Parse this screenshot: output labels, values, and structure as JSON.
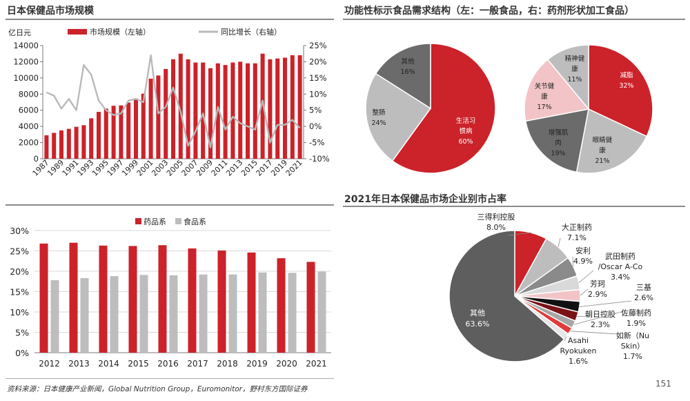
{
  "panels": {
    "top_left_title": "日本保健品市场规模",
    "top_right_title": "功能性标示食品需求结构（左：一般食品，右：药剂形状加工食品）",
    "bottom_right_title": "2021年日本保健品市场企业别市占率"
  },
  "footer": {
    "source": "资料来源：日本健康产业新闻，Global Nutrition Group，Euromonitor，野村东方国际证券",
    "page": "151"
  },
  "colors": {
    "red": "#cc2229",
    "gray": "#b9b9b9",
    "darkgray": "#6b6b6b",
    "pink": "#f2c4c7",
    "black": "#111111"
  },
  "chart_data": [
    {
      "id": "market_size",
      "type": "bar+line",
      "unit_label": "亿日元",
      "x": [
        "1987",
        "1988",
        "1989",
        "1990",
        "1991",
        "1992",
        "1993",
        "1994",
        "1995",
        "1996",
        "1997",
        "1998",
        "1999",
        "2000",
        "2001",
        "2002",
        "2003",
        "2004",
        "2005",
        "2006",
        "2007",
        "2008",
        "2009",
        "2010",
        "2011",
        "2012",
        "2013",
        "2014",
        "2015",
        "2016",
        "2017",
        "2018",
        "2019",
        "2020",
        "2021"
      ],
      "x_tick_labels": [
        "1987",
        "1989",
        "1991",
        "1993",
        "1995",
        "1997",
        "1999",
        "2001",
        "2003",
        "2005",
        "2007",
        "2009",
        "2011",
        "2013",
        "2015",
        "2017",
        "2019",
        "2021"
      ],
      "series": [
        {
          "name": "市场规模（左轴）",
          "axis": "left",
          "kind": "bar",
          "values": [
            2900,
            3200,
            3500,
            3700,
            3950,
            4150,
            5000,
            5800,
            6200,
            6550,
            6600,
            6950,
            7450,
            8050,
            9900,
            10300,
            11100,
            12300,
            13000,
            12300,
            11900,
            11900,
            11200,
            11800,
            11600,
            11900,
            12000,
            11800,
            11800,
            13000,
            12300,
            12400,
            12500,
            12800,
            12800
          ]
        },
        {
          "name": "同比增长（右轴）",
          "axis": "right",
          "kind": "line",
          "values": [
            10.5,
            9.5,
            5.5,
            8.5,
            5,
            19,
            16,
            8,
            5,
            3.5,
            4,
            8,
            8.5,
            7.5,
            22,
            4,
            6,
            12,
            4.5,
            -6,
            -1.5,
            4,
            -6.5,
            6,
            -1,
            3,
            1,
            0,
            -1,
            8,
            -5,
            0.5,
            0.5,
            2,
            -0.5
          ]
        }
      ],
      "y_left": {
        "min": 0,
        "max": 14000,
        "ticks": [
          "0",
          "2000",
          "4000",
          "6000",
          "8000",
          "10000",
          "12000",
          "14000"
        ]
      },
      "y_right": {
        "min": -10,
        "max": 25,
        "ticks": [
          "-10%",
          "-5%",
          "0%",
          "5%",
          "10%",
          "15%",
          "20%",
          "25%"
        ]
      }
    },
    {
      "id": "demand_general_food",
      "type": "pie",
      "slices": [
        {
          "label": "生活习惯病",
          "value": 60,
          "pct": "60%",
          "color": "#cc2229"
        },
        {
          "label": "整肠",
          "value": 24,
          "pct": "24%",
          "color": "#bdbdbd"
        },
        {
          "label": "其他",
          "value": 16,
          "pct": "16%",
          "color": "#6b6b6b"
        }
      ]
    },
    {
      "id": "demand_supplement",
      "type": "pie",
      "slices": [
        {
          "label": "减脂",
          "value": 32,
          "pct": "32%",
          "color": "#cc2229"
        },
        {
          "label": "眼睛健康",
          "value": 21,
          "pct": "21%",
          "color": "#bdbdbd"
        },
        {
          "label": "增强肌肉",
          "value": 19,
          "pct": "19%",
          "color": "#6b6b6b"
        },
        {
          "label": "关节健康",
          "value": 17,
          "pct": "17%",
          "color": "#f2c4c7"
        },
        {
          "label": "精神健康",
          "value": 11,
          "pct": "11%",
          "color": "#bdbdbd"
        }
      ]
    },
    {
      "id": "pharma_vs_food",
      "type": "bar",
      "categories": [
        "2012",
        "2013",
        "2014",
        "2015",
        "2016",
        "2017",
        "2018",
        "2019",
        "2020",
        "2021"
      ],
      "series": [
        {
          "name": "药品系",
          "values": [
            26.8,
            27.0,
            26.3,
            26.2,
            26.4,
            25.6,
            25.1,
            24.6,
            23.2,
            22.3
          ],
          "color": "#cc2229"
        },
        {
          "name": "食品系",
          "values": [
            17.8,
            18.3,
            18.8,
            19.1,
            19.0,
            19.2,
            19.2,
            19.7,
            19.6,
            19.9
          ],
          "color": "#bdbdbd"
        }
      ],
      "y": {
        "min": 0,
        "max": 30,
        "ticks": [
          "0%",
          "5%",
          "10%",
          "15%",
          "20%",
          "25%",
          "30%"
        ]
      }
    },
    {
      "id": "company_share_2021",
      "type": "pie",
      "slices": [
        {
          "label": "三得利控股",
          "value": 8.0,
          "pct": "8.0%",
          "color": "#cc2229"
        },
        {
          "label": "大正制药",
          "value": 7.1,
          "pct": "7.1%",
          "color": "#bdbdbd"
        },
        {
          "label": "安利",
          "value": 4.9,
          "pct": "4.9%",
          "color": "#8a8a8a"
        },
        {
          "label": "武田制药 /Oscar A-Co",
          "value": 3.4,
          "pct": "3.4%",
          "color": "#d9d9d9"
        },
        {
          "label": "芳珂",
          "value": 2.9,
          "pct": "2.9%",
          "color": "#f2c4c7"
        },
        {
          "label": "三基",
          "value": 2.6,
          "pct": "2.6%",
          "color": "#111111"
        },
        {
          "label": "朝日控股",
          "value": 2.3,
          "pct": "2.3%",
          "color": "#7a1317"
        },
        {
          "label": "佐藤制药",
          "value": 1.9,
          "pct": "1.9%",
          "color": "#a6a6a6"
        },
        {
          "label": "如新（Nu Skin）",
          "value": 1.7,
          "pct": "1.7%",
          "color": "#e23a3a"
        },
        {
          "label": "Asahi Ryokuken",
          "value": 1.6,
          "pct": "1.6%",
          "color": "#e6e6e6"
        },
        {
          "label": "其他",
          "value": 63.6,
          "pct": "63.6%",
          "color": "#5e5e5e"
        }
      ]
    }
  ]
}
